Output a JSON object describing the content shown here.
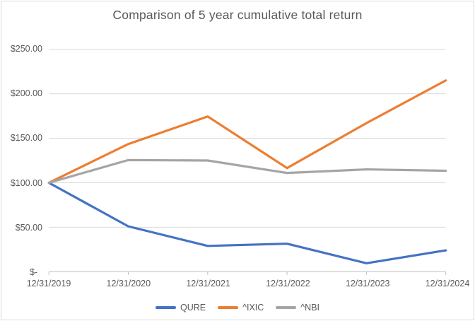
{
  "chart_data": {
    "type": "line",
    "title": "Comparison of 5 year cumulative total return",
    "categories": [
      "12/31/2019",
      "12/31/2020",
      "12/31/2021",
      "12/31/2022",
      "12/31/2023",
      "12/31/2024"
    ],
    "series": [
      {
        "name": "QURE",
        "color": "#4472C4",
        "values": [
          100,
          51,
          29,
          31.5,
          9.5,
          24
        ]
      },
      {
        "name": "^IXIC",
        "color": "#ED7D31",
        "values": [
          100,
          143.5,
          174.5,
          116.5,
          167,
          215
        ]
      },
      {
        "name": "^NBI",
        "color": "#A5A5A5",
        "values": [
          100,
          125.5,
          125,
          111,
          115,
          113.5
        ]
      }
    ],
    "y_ticks": [
      {
        "value": 250,
        "label": "$250.00"
      },
      {
        "value": 200,
        "label": "$200.00"
      },
      {
        "value": 150,
        "label": "$150.00"
      },
      {
        "value": 100,
        "label": "$100.00"
      },
      {
        "value": 50,
        "label": "$50.00"
      },
      {
        "value": 0,
        "label": "$-  "
      }
    ],
    "ylim": [
      0,
      250
    ],
    "grid": true,
    "legend_position": "bottom",
    "axis_value_prefix": "$"
  },
  "styles": {
    "text_color": "#595959",
    "title_color": "#595959",
    "grid_color": "#D9D9D9",
    "axis_line_color": "#BFBFBF",
    "frame_border_color": "#D9D9D9",
    "background": "#FFFFFF"
  }
}
